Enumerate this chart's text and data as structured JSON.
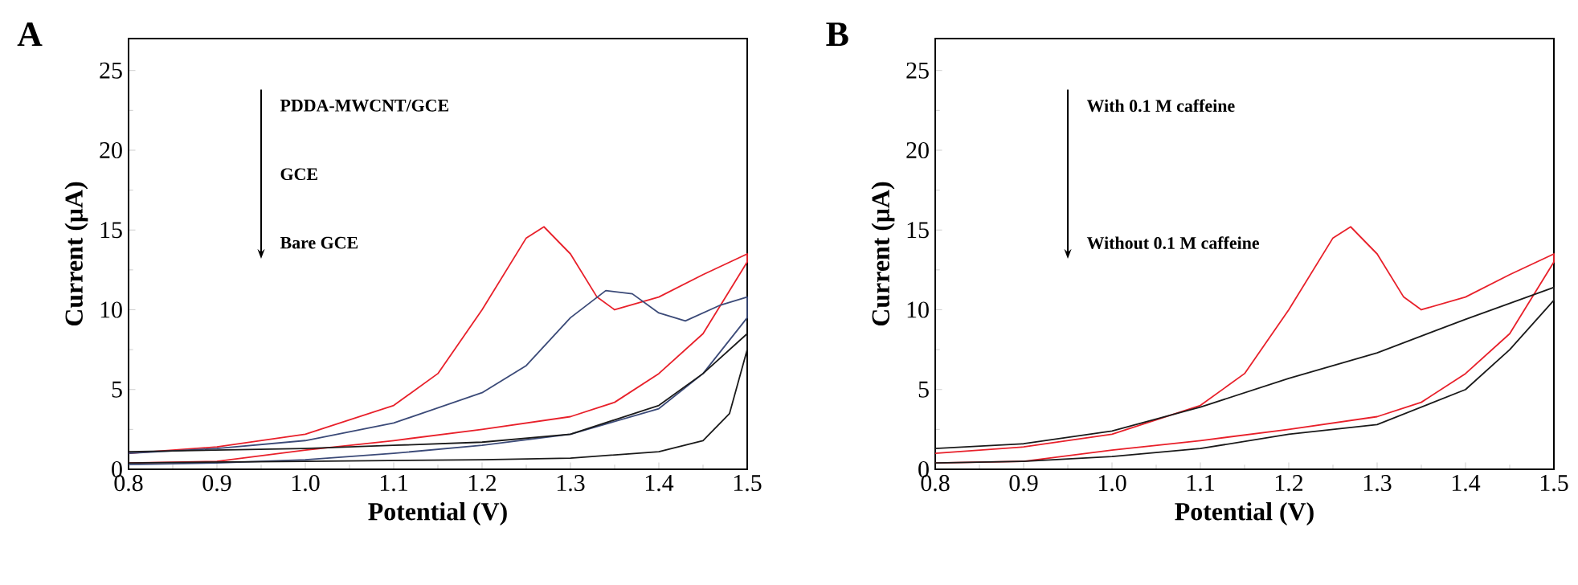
{
  "chart_data": [
    {
      "type": "line",
      "xlabel": "Potential (V)",
      "ylabel": "Current (μA)",
      "xlim": [
        0.8,
        1.5
      ],
      "ylim": [
        0,
        27
      ],
      "xticks": [
        0.8,
        0.9,
        {
          "value": 1.0,
          "label": "1.0"
        },
        1.1,
        1.2,
        1.3,
        1.4,
        1.5
      ],
      "yticks": [
        0,
        5,
        10,
        15,
        20,
        25
      ],
      "grid": false,
      "marker": "none",
      "line_style": "solid",
      "annotations": [
        "A",
        "PDDA-MWCNT/GCE",
        "GCE",
        "Bare GCE"
      ],
      "series": [
        {
          "color": "#e8202a",
          "x": [
            0.8,
            0.9,
            1.0,
            1.1,
            1.15,
            1.2,
            1.25,
            1.27,
            1.3,
            1.33,
            1.35,
            1.4,
            1.45,
            1.5,
            1.5,
            1.45,
            1.4,
            1.35,
            1.3,
            1.2,
            1.1,
            1.0,
            0.9,
            0.8
          ],
          "values": [
            1.0,
            1.4,
            2.2,
            4.0,
            6.0,
            10.0,
            14.5,
            15.2,
            13.5,
            10.8,
            10.0,
            10.8,
            12.2,
            13.5,
            13.0,
            8.5,
            6.0,
            4.2,
            3.3,
            2.5,
            1.8,
            1.2,
            0.5,
            0.4
          ]
        },
        {
          "color": "#3b4a78",
          "x": [
            0.8,
            0.9,
            1.0,
            1.1,
            1.2,
            1.25,
            1.3,
            1.34,
            1.37,
            1.4,
            1.43,
            1.47,
            1.5,
            1.5,
            1.45,
            1.4,
            1.3,
            1.2,
            1.1,
            1.0,
            0.9,
            0.8
          ],
          "values": [
            1.0,
            1.3,
            1.8,
            2.9,
            4.8,
            6.5,
            9.5,
            11.2,
            11.0,
            9.8,
            9.3,
            10.3,
            10.8,
            9.5,
            6.0,
            3.8,
            2.2,
            1.5,
            1.0,
            0.6,
            0.4,
            0.3
          ]
        },
        {
          "color": "#1a1a1a",
          "x": [
            0.8,
            0.9,
            1.0,
            1.1,
            1.2,
            1.3,
            1.4,
            1.45,
            1.5,
            1.5,
            1.48,
            1.45,
            1.4,
            1.3,
            1.2,
            1.0,
            0.8
          ],
          "values": [
            1.1,
            1.2,
            1.3,
            1.5,
            1.7,
            2.2,
            4.0,
            6.0,
            8.5,
            7.5,
            3.5,
            1.8,
            1.1,
            0.7,
            0.6,
            0.5,
            0.4
          ]
        }
      ]
    },
    {
      "type": "line",
      "xlabel": "Potential (V)",
      "ylabel": "Current (μA)",
      "xlim": [
        0.8,
        1.5
      ],
      "ylim": [
        0,
        27
      ],
      "xticks": [
        0.8,
        0.9,
        {
          "value": 1.0,
          "label": "1.0"
        },
        1.1,
        1.2,
        1.3,
        1.4,
        1.5
      ],
      "yticks": [
        0,
        5,
        10,
        15,
        20,
        25
      ],
      "grid": false,
      "marker": "none",
      "line_style": "solid",
      "annotations": [
        "B",
        "With 0.1 M caffeine",
        "Without 0.1 M caffeine"
      ],
      "series": [
        {
          "color": "#e8202a",
          "x": [
            0.8,
            0.9,
            1.0,
            1.1,
            1.15,
            1.2,
            1.25,
            1.27,
            1.3,
            1.33,
            1.35,
            1.4,
            1.45,
            1.5,
            1.5,
            1.45,
            1.4,
            1.35,
            1.3,
            1.2,
            1.1,
            1.0,
            0.9,
            0.8
          ],
          "values": [
            1.0,
            1.4,
            2.2,
            4.0,
            6.0,
            10.0,
            14.5,
            15.2,
            13.5,
            10.8,
            10.0,
            10.8,
            12.2,
            13.5,
            13.0,
            8.5,
            6.0,
            4.2,
            3.3,
            2.5,
            1.8,
            1.2,
            0.5,
            0.4
          ]
        },
        {
          "color": "#1a1a1a",
          "x": [
            0.8,
            0.9,
            1.0,
            1.1,
            1.2,
            1.3,
            1.4,
            1.5,
            1.5,
            1.45,
            1.4,
            1.3,
            1.2,
            1.1,
            1.0,
            0.9,
            0.8
          ],
          "values": [
            1.3,
            1.6,
            2.4,
            3.9,
            5.7,
            7.3,
            9.4,
            11.4,
            10.6,
            7.5,
            5.0,
            2.8,
            2.2,
            1.3,
            0.8,
            0.5,
            0.4
          ]
        }
      ]
    }
  ]
}
